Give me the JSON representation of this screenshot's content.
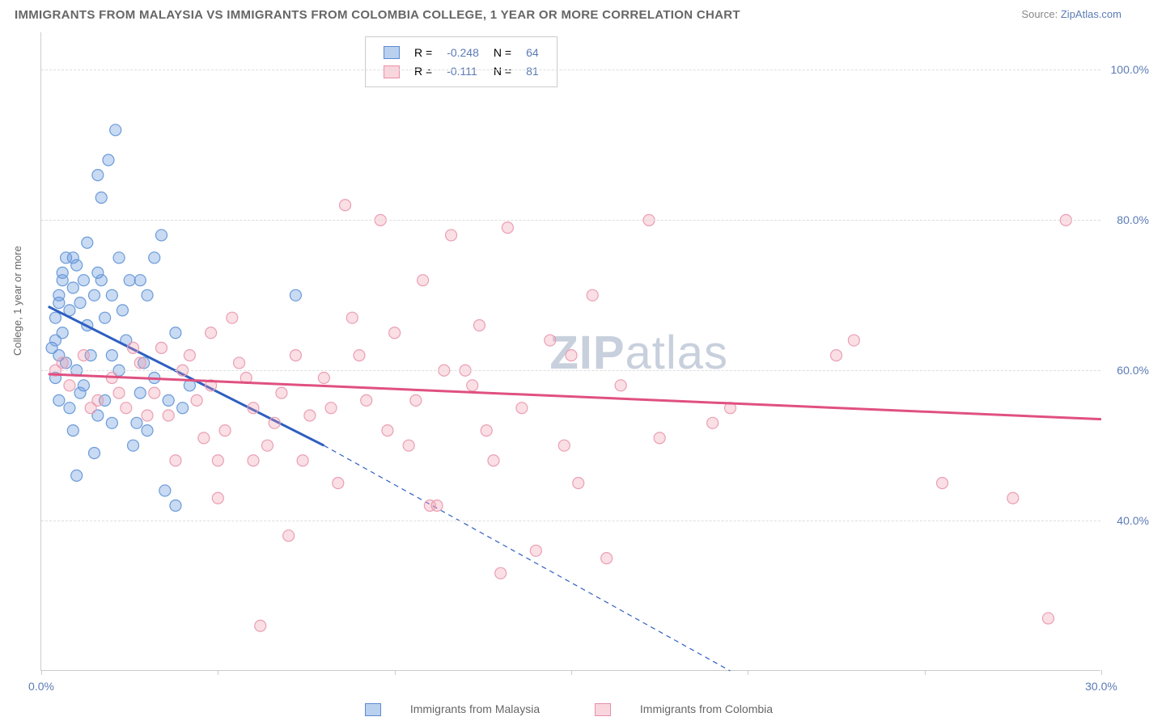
{
  "title": "IMMIGRANTS FROM MALAYSIA VS IMMIGRANTS FROM COLOMBIA COLLEGE, 1 YEAR OR MORE CORRELATION CHART",
  "source_label": "Source:",
  "source_name": "ZipAtlas.com",
  "ylabel": "College, 1 year or more",
  "watermark_bold": "ZIP",
  "watermark_rest": "atlas",
  "legend_bottom": {
    "series_a": "Immigrants from Malaysia",
    "series_b": "Immigrants from Colombia"
  },
  "inset": {
    "rows": [
      {
        "badge": "blue",
        "r_label": "R =",
        "r_val": "-0.248",
        "n_label": "N =",
        "n_val": "64"
      },
      {
        "badge": "pink",
        "r_label": "R =",
        "r_val": "-0.111",
        "n_label": "N =",
        "n_val": "81"
      }
    ]
  },
  "chart": {
    "type": "scatter",
    "xlim": [
      0,
      30
    ],
    "ylim": [
      20,
      105
    ],
    "x_ticks_at": [
      0,
      5,
      10,
      15,
      20,
      25,
      30
    ],
    "x_tick_labels": {
      "0": "0.0%",
      "30": "30.0%"
    },
    "y_gridlines": [
      40,
      60,
      80,
      100
    ],
    "y_tick_labels": {
      "40": "40.0%",
      "60": "60.0%",
      "80": "80.0%",
      "100": "100.0%"
    },
    "background_color": "#ffffff",
    "grid_color": "#dddddd",
    "axis_color": "#cccccc",
    "series": [
      {
        "name": "malaysia",
        "marker_fill": "rgba(100,150,220,0.35)",
        "marker_stroke": "#6a9bd8",
        "marker_r": 7,
        "trend_color": "#2f5fc0",
        "trend_width": 3,
        "trend_solid": {
          "x1": 0.2,
          "y1": 68.5,
          "x2": 8.0,
          "y2": 50.0
        },
        "trend_dashed": {
          "x1": 8.0,
          "y1": 50.0,
          "x2": 19.5,
          "y2": 20.0
        },
        "points": [
          [
            0.3,
            63
          ],
          [
            0.4,
            67
          ],
          [
            0.5,
            70
          ],
          [
            0.6,
            72
          ],
          [
            0.7,
            75
          ],
          [
            0.5,
            62
          ],
          [
            0.8,
            68
          ],
          [
            0.9,
            71
          ],
          [
            1.0,
            74
          ],
          [
            0.6,
            65
          ],
          [
            1.1,
            69
          ],
          [
            1.2,
            72
          ],
          [
            0.4,
            59
          ],
          [
            1.3,
            66
          ],
          [
            1.5,
            70
          ],
          [
            0.7,
            61
          ],
          [
            1.6,
            73
          ],
          [
            1.8,
            67
          ],
          [
            0.5,
            56
          ],
          [
            2.0,
            70
          ],
          [
            1.0,
            60
          ],
          [
            2.2,
            75
          ],
          [
            1.2,
            58
          ],
          [
            2.4,
            64
          ],
          [
            0.8,
            55
          ],
          [
            2.5,
            72
          ],
          [
            1.4,
            62
          ],
          [
            2.8,
            57
          ],
          [
            1.6,
            54
          ],
          [
            3.0,
            70
          ],
          [
            1.8,
            56
          ],
          [
            3.2,
            59
          ],
          [
            2.0,
            53
          ],
          [
            3.4,
            78
          ],
          [
            2.2,
            60
          ],
          [
            3.6,
            56
          ],
          [
            2.6,
            50
          ],
          [
            3.8,
            65
          ],
          [
            3.0,
            52
          ],
          [
            4.0,
            55
          ],
          [
            1.0,
            46
          ],
          [
            4.2,
            58
          ],
          [
            1.5,
            49
          ],
          [
            0.9,
            52
          ],
          [
            2.8,
            72
          ],
          [
            1.9,
            88
          ],
          [
            1.6,
            86
          ],
          [
            1.7,
            83
          ],
          [
            2.1,
            92
          ],
          [
            3.2,
            75
          ],
          [
            0.6,
            73
          ],
          [
            0.9,
            75
          ],
          [
            1.3,
            77
          ],
          [
            0.5,
            69
          ],
          [
            1.7,
            72
          ],
          [
            2.3,
            68
          ],
          [
            3.5,
            44
          ],
          [
            3.8,
            42
          ],
          [
            0.4,
            64
          ],
          [
            1.1,
            57
          ],
          [
            2.0,
            62
          ],
          [
            2.7,
            53
          ],
          [
            7.2,
            70
          ],
          [
            2.9,
            61
          ]
        ]
      },
      {
        "name": "colombia",
        "marker_fill": "rgba(240,150,170,0.3)",
        "marker_stroke": "#ea9fb3",
        "marker_r": 7,
        "trend_color": "#e05080",
        "trend_width": 3,
        "trend_solid": {
          "x1": 0.2,
          "y1": 59.5,
          "x2": 30.0,
          "y2": 53.5
        },
        "points": [
          [
            0.4,
            60
          ],
          [
            0.8,
            58
          ],
          [
            1.2,
            62
          ],
          [
            1.6,
            56
          ],
          [
            2.0,
            59
          ],
          [
            2.4,
            55
          ],
          [
            2.8,
            61
          ],
          [
            3.2,
            57
          ],
          [
            3.6,
            54
          ],
          [
            4.0,
            60
          ],
          [
            4.4,
            56
          ],
          [
            4.8,
            58
          ],
          [
            5.2,
            52
          ],
          [
            5.6,
            61
          ],
          [
            6.0,
            55
          ],
          [
            6.4,
            50
          ],
          [
            6.8,
            57
          ],
          [
            7.2,
            62
          ],
          [
            5.0,
            48
          ],
          [
            7.6,
            54
          ],
          [
            8.0,
            59
          ],
          [
            8.4,
            45
          ],
          [
            8.8,
            67
          ],
          [
            9.2,
            56
          ],
          [
            9.6,
            80
          ],
          [
            10.0,
            65
          ],
          [
            10.4,
            50
          ],
          [
            10.8,
            72
          ],
          [
            11.2,
            42
          ],
          [
            11.6,
            78
          ],
          [
            12.0,
            60
          ],
          [
            12.4,
            66
          ],
          [
            12.8,
            48
          ],
          [
            13.2,
            79
          ],
          [
            13.6,
            55
          ],
          [
            14.0,
            36
          ],
          [
            14.4,
            64
          ],
          [
            14.8,
            50
          ],
          [
            15.2,
            45
          ],
          [
            15.6,
            70
          ],
          [
            16.0,
            35
          ],
          [
            16.4,
            58
          ],
          [
            5.4,
            67
          ],
          [
            17.2,
            80
          ],
          [
            4.8,
            65
          ],
          [
            23.0,
            64
          ],
          [
            6.2,
            26
          ],
          [
            22.5,
            62
          ],
          [
            8.6,
            82
          ],
          [
            19.0,
            53
          ],
          [
            3.4,
            63
          ],
          [
            25.5,
            45
          ],
          [
            4.6,
            51
          ],
          [
            17.5,
            51
          ],
          [
            5.8,
            59
          ],
          [
            19.5,
            55
          ],
          [
            6.6,
            53
          ],
          [
            15.0,
            62
          ],
          [
            7.4,
            48
          ],
          [
            27.5,
            43
          ],
          [
            8.2,
            55
          ],
          [
            29.0,
            80
          ],
          [
            9.0,
            62
          ],
          [
            13.0,
            33
          ],
          [
            9.8,
            52
          ],
          [
            28.5,
            27
          ],
          [
            10.6,
            56
          ],
          [
            3.0,
            54
          ],
          [
            11.4,
            60
          ],
          [
            2.2,
            57
          ],
          [
            12.2,
            58
          ],
          [
            1.4,
            55
          ],
          [
            12.6,
            52
          ],
          [
            0.6,
            61
          ],
          [
            11.0,
            42
          ],
          [
            4.2,
            62
          ],
          [
            3.8,
            48
          ],
          [
            2.6,
            63
          ],
          [
            7.0,
            38
          ],
          [
            5.0,
            43
          ],
          [
            6.0,
            48
          ]
        ]
      }
    ]
  }
}
